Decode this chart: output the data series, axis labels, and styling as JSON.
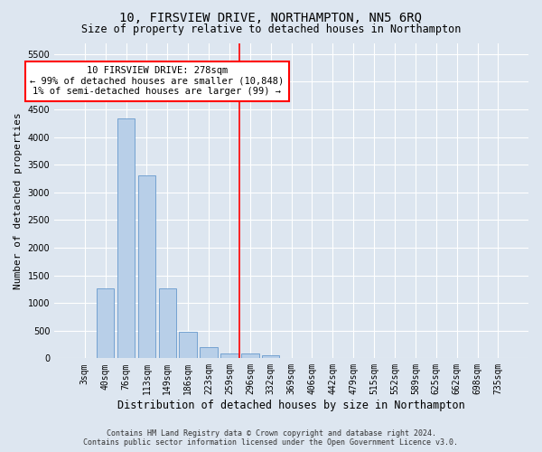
{
  "title": "10, FIRSVIEW DRIVE, NORTHAMPTON, NN5 6RQ",
  "subtitle": "Size of property relative to detached houses in Northampton",
  "xlabel": "Distribution of detached houses by size in Northampton",
  "ylabel": "Number of detached properties",
  "footer_line1": "Contains HM Land Registry data © Crown copyright and database right 2024.",
  "footer_line2": "Contains public sector information licensed under the Open Government Licence v3.0.",
  "categories": [
    "3sqm",
    "40sqm",
    "76sqm",
    "113sqm",
    "149sqm",
    "186sqm",
    "223sqm",
    "259sqm",
    "296sqm",
    "332sqm",
    "369sqm",
    "406sqm",
    "442sqm",
    "479sqm",
    "515sqm",
    "552sqm",
    "589sqm",
    "625sqm",
    "662sqm",
    "698sqm",
    "735sqm"
  ],
  "bar_values": [
    0,
    1270,
    4340,
    3300,
    1270,
    480,
    200,
    90,
    90,
    55,
    0,
    0,
    0,
    0,
    0,
    0,
    0,
    0,
    0,
    0,
    0
  ],
  "bar_color": "#b8cfe8",
  "bar_edgecolor": "#6699cc",
  "background_color": "#dde6f0",
  "grid_color": "#ffffff",
  "ylim": [
    0,
    5700
  ],
  "yticks": [
    0,
    500,
    1000,
    1500,
    2000,
    2500,
    3000,
    3500,
    4000,
    4500,
    5000,
    5500
  ],
  "vline_x_index": 8,
  "vline_color": "red",
  "annotation_line1": "10 FIRSVIEW DRIVE: 278sqm",
  "annotation_line2": "← 99% of detached houses are smaller (10,848)",
  "annotation_line3": "1% of semi-detached houses are larger (99) →",
  "annotation_box_color": "white",
  "annotation_box_edgecolor": "red",
  "title_fontsize": 10,
  "subtitle_fontsize": 8.5,
  "ylabel_fontsize": 8,
  "xlabel_fontsize": 8.5,
  "tick_fontsize": 7,
  "annotation_fontsize": 7.5,
  "footer_fontsize": 6
}
